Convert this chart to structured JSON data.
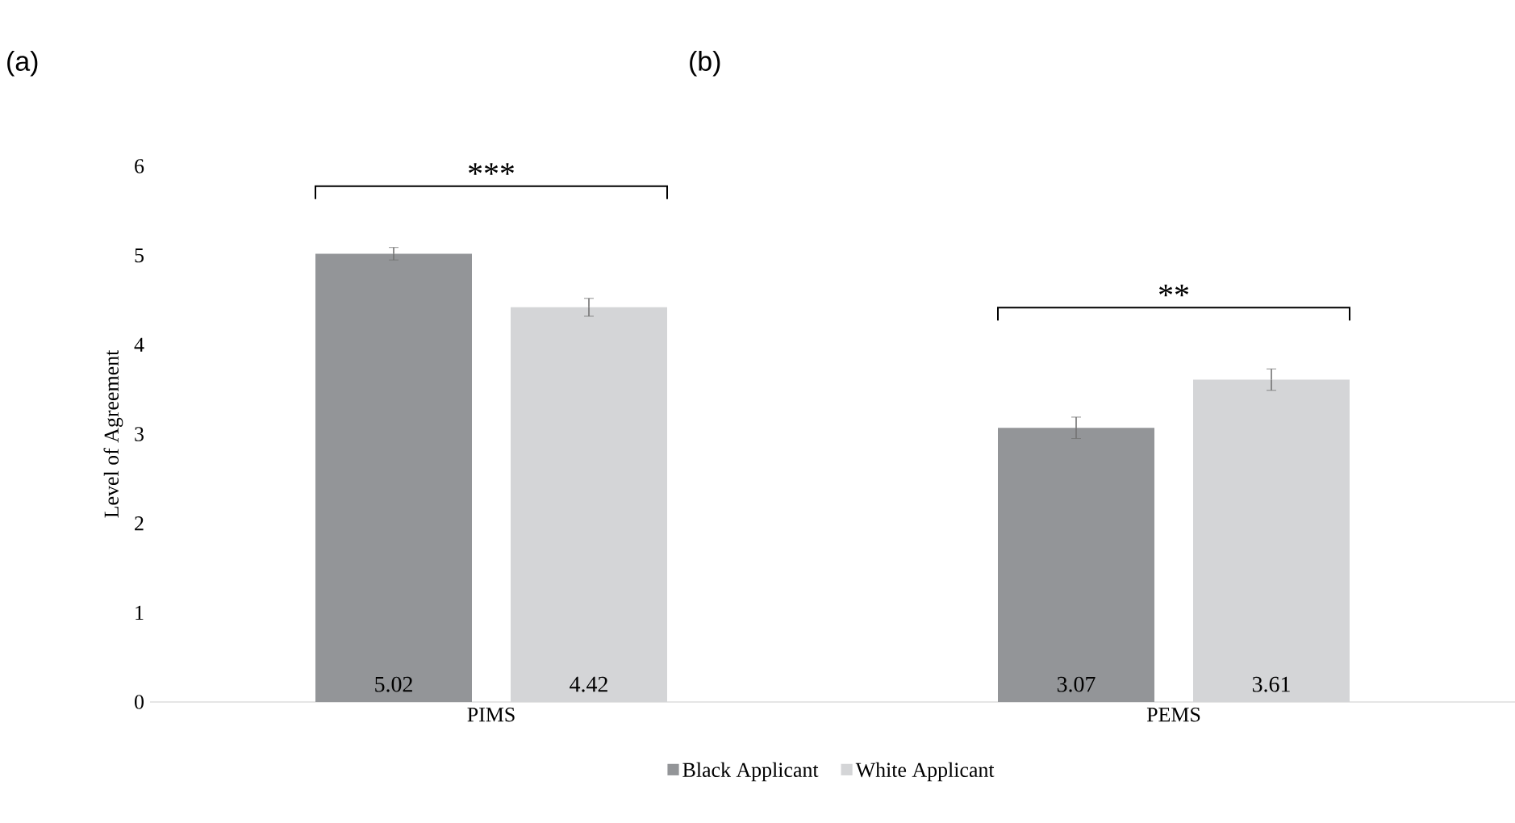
{
  "chart_data": {
    "type": "bar",
    "ylabel": "Level of Agreement",
    "categories": [
      "PIMS",
      "PEMS"
    ],
    "series": [
      {
        "name": "Black Applicant",
        "color": "#939598",
        "values": [
          5.02,
          3.07
        ],
        "errors": [
          0.07,
          0.12
        ]
      },
      {
        "name": "White Applicant",
        "color": "#d4d5d7",
        "values": [
          4.42,
          3.61
        ],
        "errors": [
          0.1,
          0.12
        ]
      }
    ],
    "ylim": [
      0,
      6
    ],
    "yticks": [
      0,
      1,
      2,
      3,
      4,
      5,
      6
    ],
    "data_labels": true,
    "legend": "bottom",
    "annotations": [
      "(a)",
      "(b)",
      "***",
      "**"
    ]
  }
}
